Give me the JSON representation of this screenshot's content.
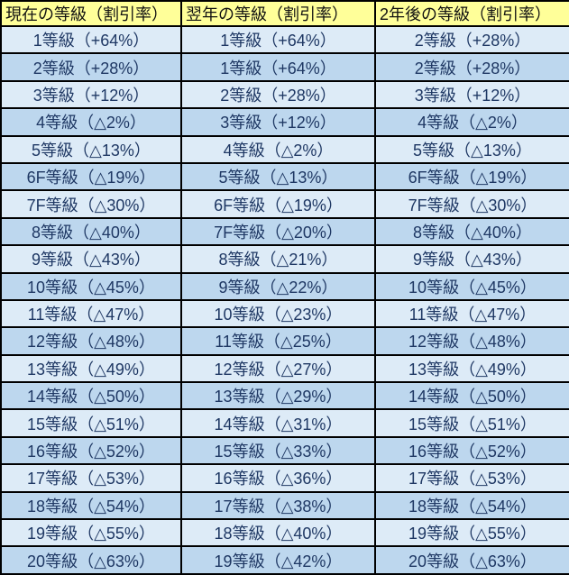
{
  "chart_data": {
    "type": "table",
    "columns": [
      "現在の等級（割引率）",
      "翌年の等級（割引率）",
      "2年後の等級（割引率）"
    ],
    "rows": [
      [
        "1等級（+64%）",
        "1等級（+64%）",
        "2等級（+28%）"
      ],
      [
        "2等級（+28%）",
        "1等級（+64%）",
        "2等級（+28%）"
      ],
      [
        "3等級（+12%）",
        "2等級（+28%）",
        "3等級（+12%）"
      ],
      [
        "4等級（△2%）",
        "3等級（+12%）",
        "4等級（△2%）"
      ],
      [
        "5等級（△13%）",
        "4等級（△2%）",
        "5等級（△13%）"
      ],
      [
        "6F等級（△19%）",
        "5等級（△13%）",
        "6F等級（△19%）"
      ],
      [
        "7F等級（△30%）",
        "6F等級（△19%）",
        "7F等級（△30%）"
      ],
      [
        "8等級（△40%）",
        "7F等級（△20%）",
        "8等級（△40%）"
      ],
      [
        "9等級（△43%）",
        "8等級（△21%）",
        "9等級（△43%）"
      ],
      [
        "10等級（△45%）",
        "9等級（△22%）",
        "10等級（△45%）"
      ],
      [
        "11等級（△47%）",
        "10等級（△23%）",
        "11等級（△47%）"
      ],
      [
        "12等級（△48%）",
        "11等級（△25%）",
        "12等級（△48%）"
      ],
      [
        "13等級（△49%）",
        "12等級（△27%）",
        "13等級（△49%）"
      ],
      [
        "14等級（△50%）",
        "13等級（△29%）",
        "14等級（△50%）"
      ],
      [
        "15等級（△51%）",
        "14等級（△31%）",
        "15等級（△51%）"
      ],
      [
        "16等級（△52%）",
        "15等級（△33%）",
        "16等級（△52%）"
      ],
      [
        "17等級（△53%）",
        "16等級（△36%）",
        "17等級（△53%）"
      ],
      [
        "18等級（△54%）",
        "17等級（△38%）",
        "18等級（△54%）"
      ],
      [
        "19等級（△55%）",
        "18等級（△40%）",
        "19等級（△55%）"
      ],
      [
        "20等級（△63%）",
        "19等級（△42%）",
        "20等級（△63%）"
      ]
    ]
  },
  "colors": {
    "header_bg": "#FFFF99",
    "header_text": "#111111",
    "row_light": "#DDEBF7",
    "row_dark": "#BDD7EE",
    "body_text": "#1F3864",
    "border": "#000000"
  }
}
